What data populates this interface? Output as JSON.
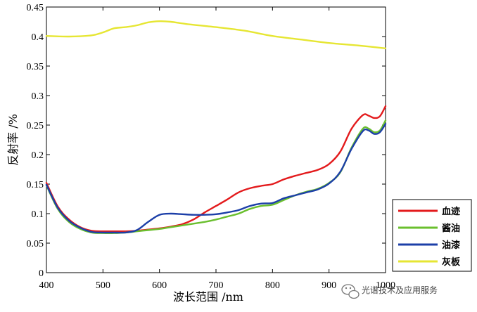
{
  "chart_data": {
    "type": "line",
    "title": "",
    "xlabel": "波长范围 /nm",
    "ylabel": "反射率 /%",
    "xlim": [
      400,
      1000
    ],
    "ylim": [
      0,
      0.45
    ],
    "x_ticks": [
      400,
      500,
      600,
      700,
      800,
      900,
      1000
    ],
    "y_ticks": [
      0,
      0.05,
      0.1,
      0.15,
      0.2,
      0.25,
      0.3,
      0.35,
      0.4,
      0.45
    ],
    "x_tick_labels": [
      "400",
      "500",
      "600",
      "700",
      "800",
      "900",
      "1000"
    ],
    "y_tick_labels": [
      "0",
      "0.05",
      "0.1",
      "0.15",
      "0.2",
      "0.25",
      "0.3",
      "0.35",
      "0.4",
      "0.45"
    ],
    "grid": false,
    "legend_position": "bottom-right",
    "series": [
      {
        "name": "血迹",
        "color": "#e31a1c",
        "points": [
          [
            400,
            0.152
          ],
          [
            420,
            0.112
          ],
          [
            440,
            0.09
          ],
          [
            460,
            0.077
          ],
          [
            480,
            0.071
          ],
          [
            500,
            0.07
          ],
          [
            520,
            0.07
          ],
          [
            540,
            0.07
          ],
          [
            560,
            0.071
          ],
          [
            580,
            0.073
          ],
          [
            600,
            0.075
          ],
          [
            620,
            0.078
          ],
          [
            640,
            0.082
          ],
          [
            660,
            0.09
          ],
          [
            680,
            0.102
          ],
          [
            700,
            0.113
          ],
          [
            720,
            0.124
          ],
          [
            740,
            0.136
          ],
          [
            760,
            0.143
          ],
          [
            780,
            0.147
          ],
          [
            800,
            0.15
          ],
          [
            820,
            0.158
          ],
          [
            840,
            0.164
          ],
          [
            860,
            0.169
          ],
          [
            880,
            0.174
          ],
          [
            900,
            0.184
          ],
          [
            920,
            0.205
          ],
          [
            940,
            0.244
          ],
          [
            960,
            0.267
          ],
          [
            970,
            0.266
          ],
          [
            980,
            0.262
          ],
          [
            990,
            0.265
          ],
          [
            1000,
            0.282
          ]
        ]
      },
      {
        "name": "酱油",
        "color": "#6abf2e",
        "points": [
          [
            400,
            0.148
          ],
          [
            420,
            0.108
          ],
          [
            440,
            0.086
          ],
          [
            460,
            0.074
          ],
          [
            480,
            0.068
          ],
          [
            500,
            0.067
          ],
          [
            520,
            0.067
          ],
          [
            540,
            0.068
          ],
          [
            560,
            0.07
          ],
          [
            580,
            0.072
          ],
          [
            600,
            0.074
          ],
          [
            620,
            0.077
          ],
          [
            640,
            0.08
          ],
          [
            660,
            0.083
          ],
          [
            680,
            0.086
          ],
          [
            700,
            0.09
          ],
          [
            720,
            0.095
          ],
          [
            740,
            0.1
          ],
          [
            760,
            0.108
          ],
          [
            780,
            0.113
          ],
          [
            800,
            0.115
          ],
          [
            820,
            0.123
          ],
          [
            840,
            0.131
          ],
          [
            860,
            0.137
          ],
          [
            880,
            0.142
          ],
          [
            900,
            0.152
          ],
          [
            920,
            0.17
          ],
          [
            940,
            0.212
          ],
          [
            960,
            0.244
          ],
          [
            970,
            0.244
          ],
          [
            980,
            0.238
          ],
          [
            990,
            0.241
          ],
          [
            1000,
            0.258
          ]
        ]
      },
      {
        "name": "油漆",
        "color": "#1c3fa8",
        "points": [
          [
            400,
            0.149
          ],
          [
            420,
            0.11
          ],
          [
            440,
            0.088
          ],
          [
            460,
            0.076
          ],
          [
            480,
            0.069
          ],
          [
            500,
            0.068
          ],
          [
            520,
            0.068
          ],
          [
            540,
            0.068
          ],
          [
            560,
            0.072
          ],
          [
            580,
            0.086
          ],
          [
            600,
            0.098
          ],
          [
            620,
            0.1
          ],
          [
            640,
            0.099
          ],
          [
            660,
            0.098
          ],
          [
            680,
            0.098
          ],
          [
            700,
            0.099
          ],
          [
            720,
            0.102
          ],
          [
            740,
            0.106
          ],
          [
            760,
            0.113
          ],
          [
            780,
            0.117
          ],
          [
            800,
            0.118
          ],
          [
            820,
            0.126
          ],
          [
            840,
            0.131
          ],
          [
            860,
            0.136
          ],
          [
            880,
            0.141
          ],
          [
            900,
            0.151
          ],
          [
            920,
            0.171
          ],
          [
            940,
            0.21
          ],
          [
            960,
            0.24
          ],
          [
            970,
            0.241
          ],
          [
            980,
            0.235
          ],
          [
            990,
            0.238
          ],
          [
            1000,
            0.252
          ]
        ]
      },
      {
        "name": "灰板",
        "color": "#e6e633",
        "points": [
          [
            400,
            0.401
          ],
          [
            440,
            0.4
          ],
          [
            480,
            0.402
          ],
          [
            500,
            0.407
          ],
          [
            520,
            0.414
          ],
          [
            540,
            0.416
          ],
          [
            560,
            0.419
          ],
          [
            580,
            0.424
          ],
          [
            600,
            0.426
          ],
          [
            620,
            0.425
          ],
          [
            650,
            0.421
          ],
          [
            700,
            0.416
          ],
          [
            750,
            0.41
          ],
          [
            800,
            0.401
          ],
          [
            850,
            0.395
          ],
          [
            900,
            0.389
          ],
          [
            950,
            0.385
          ],
          [
            1000,
            0.38
          ]
        ]
      }
    ]
  },
  "watermark": {
    "text": "光谱技术及应用服务"
  }
}
